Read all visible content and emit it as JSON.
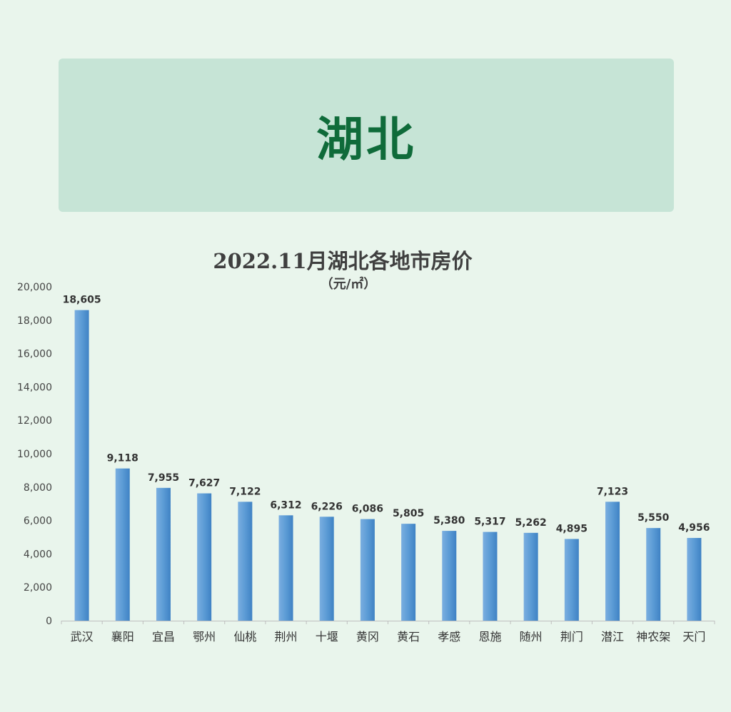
{
  "banner": {
    "title": "湖北"
  },
  "chart_data": {
    "type": "bar",
    "title": "2022.11月湖北各地市房价",
    "subtitle": "（元/㎡）",
    "categories": [
      "武汉",
      "襄阳",
      "宜昌",
      "鄂州",
      "仙桃",
      "荆州",
      "十堰",
      "黄冈",
      "黄石",
      "孝感",
      "恩施",
      "随州",
      "荆门",
      "潜江",
      "神农架",
      "天门"
    ],
    "values": [
      18605,
      9118,
      7955,
      7627,
      7122,
      6312,
      6226,
      6086,
      5805,
      5380,
      5317,
      5262,
      4895,
      7123,
      5550,
      4956
    ],
    "value_labels": [
      "18,605",
      "9,118",
      "7,955",
      "7,627",
      "7,122",
      "6,312",
      "6,226",
      "6,086",
      "5,805",
      "5,380",
      "5,317",
      "5,262",
      "4,895",
      "7,123",
      "5,550",
      "4,956"
    ],
    "ylim": [
      0,
      20000
    ],
    "yticks": [
      0,
      2000,
      4000,
      6000,
      8000,
      10000,
      12000,
      14000,
      16000,
      18000,
      20000
    ],
    "ytick_labels": [
      "0",
      "2,000",
      "4,000",
      "6,000",
      "8,000",
      "10,000",
      "12,000",
      "14,000",
      "16,000",
      "18,000",
      "20,000"
    ],
    "xlabel": "",
    "ylabel": "",
    "grid": false,
    "legend": "none",
    "bar_color": "#5b9bd5"
  }
}
